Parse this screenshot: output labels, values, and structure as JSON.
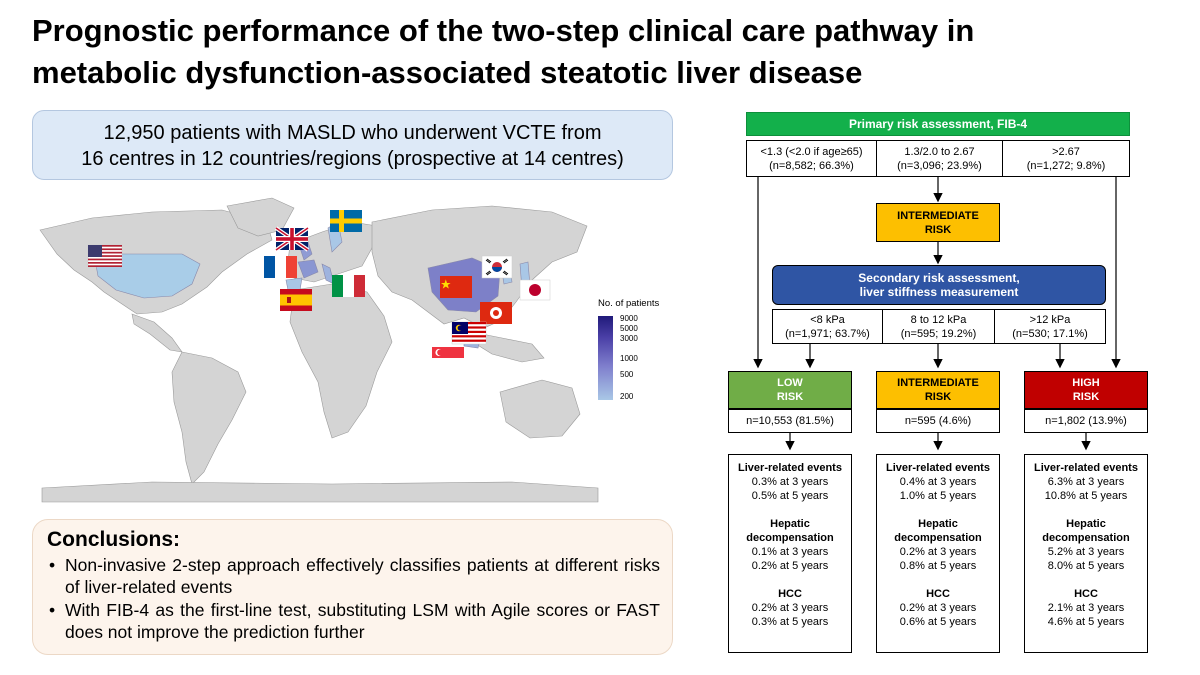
{
  "title": {
    "line1": "Prognostic performance of the two-step clinical care pathway in",
    "line2": "metabolic dysfunction-associated steatotic liver disease"
  },
  "cohort": {
    "line1": "12,950 patients with MASLD who underwent VCTE from",
    "line2": "16 centres in 12 countries/regions (prospective at 14 centres)"
  },
  "map_legend": {
    "title": "No. of patients",
    "ticks": [
      "9000",
      "5000",
      "3000",
      "1000",
      "500",
      "200"
    ],
    "colors": [
      "#201a7a",
      "#4a3fa6",
      "#7f7fcd",
      "#a9c7e6"
    ]
  },
  "countries": [
    "United States",
    "United Kingdom",
    "Sweden",
    "France",
    "Spain",
    "Italy",
    "China",
    "South Korea",
    "Japan",
    "Hong Kong",
    "Malaysia",
    "Singapore"
  ],
  "conclusions": {
    "heading": "Conclusions:",
    "items": [
      "Non-invasive 2-step approach effectively classifies patients at different risks of liver-related events",
      "With FIB-4 as the first-line test, substituting LSM with Agile scores or FAST does not improve the prediction further"
    ]
  },
  "flow": {
    "primary": "Primary risk assessment, FIB-4",
    "fib4": [
      {
        "cut": "<1.3 (<2.0 if age≥65)",
        "n": "(n=8,582; 66.3%)"
      },
      {
        "cut": "1.3/2.0 to 2.67",
        "n": "(n=3,096; 23.9%)"
      },
      {
        "cut": ">2.67",
        "n": "(n=1,272; 9.8%)"
      }
    ],
    "intermediate_top": {
      "line1": "INTERMEDIATE",
      "line2": "RISK"
    },
    "secondary": {
      "line1": "Secondary risk assessment,",
      "line2": "liver stiffness measurement"
    },
    "lsm": [
      {
        "cut": "<8 kPa",
        "n": "(n=1,971; 63.7%)"
      },
      {
        "cut": "8 to 12 kPa",
        "n": "(n=595; 19.2%)"
      },
      {
        "cut": ">12 kPa",
        "n": "(n=530; 17.1%)"
      }
    ],
    "groups": [
      {
        "label1": "LOW",
        "label2": "RISK",
        "n": "n=10,553 (81.5%)",
        "lre": "Liver-related events",
        "lre3": "0.3% at 3 years",
        "lre5": "0.5% at 5 years",
        "dec1": "Hepatic",
        "dec2": "decompensation",
        "dec3": "0.1% at 3 years",
        "dec5": "0.2% at 5 years",
        "hcc": "HCC",
        "hcc3": "0.2% at 3 years",
        "hcc5": "0.3% at 5 years"
      },
      {
        "label1": "INTERMEDIATE",
        "label2": "RISK",
        "n": "n=595 (4.6%)",
        "lre": "Liver-related events",
        "lre3": "0.4% at 3 years",
        "lre5": "1.0% at 5 years",
        "dec1": "Hepatic",
        "dec2": "decompensation",
        "dec3": "0.2% at 3 years",
        "dec5": "0.8% at 5 years",
        "hcc": "HCC",
        "hcc3": "0.2% at 3 years",
        "hcc5": "0.6% at 5 years"
      },
      {
        "label1": "HIGH",
        "label2": "RISK",
        "n": "n=1,802 (13.9%)",
        "lre": "Liver-related events",
        "lre3": "6.3% at 3 years",
        "lre5": "10.8% at 5 years",
        "dec1": "Hepatic",
        "dec2": "decompensation",
        "dec3": "5.2% at 3 years",
        "dec5": "8.0% at 5 years",
        "hcc": "HCC",
        "hcc3": "2.1% at 3 years",
        "hcc5": "4.6% at 5 years"
      }
    ]
  }
}
